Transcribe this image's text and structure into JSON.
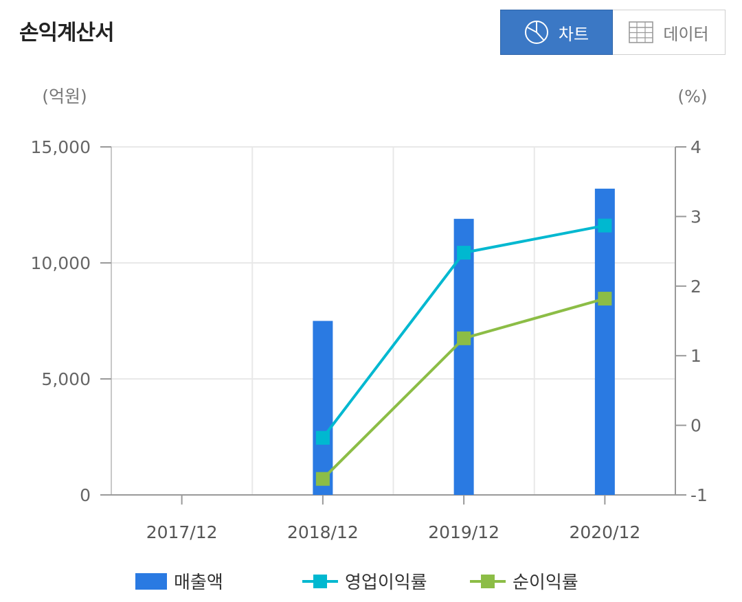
{
  "header": {
    "title": "손익계산서",
    "chart_button_label": "차트",
    "data_button_label": "데이터",
    "chart_icon": "pie-chart-icon",
    "data_icon": "table-grid-icon"
  },
  "colors": {
    "bar": "#2a7ae2",
    "operating": "#00b8d0",
    "net": "#8cbd46",
    "accent": "#3b78c5"
  },
  "chart_data": {
    "type": "bar",
    "categories": [
      "2017/12",
      "2018/12",
      "2019/12",
      "2020/12"
    ],
    "left_axis": {
      "label": "(억원)",
      "ylim": [
        0,
        15000
      ],
      "ticks": [
        0,
        5000,
        10000,
        15000
      ],
      "tick_labels": [
        "0",
        "5,000",
        "10,000",
        "15,000"
      ]
    },
    "right_axis": {
      "label": "(%)",
      "ylim": [
        -1,
        4
      ],
      "ticks": [
        -1,
        0,
        1,
        2,
        3,
        4
      ],
      "tick_labels": [
        "-1",
        "0",
        "1",
        "2",
        "3",
        "4"
      ]
    },
    "grid": true,
    "legend_position": "bottom",
    "series": [
      {
        "name": "매출액",
        "type": "bar",
        "axis": "left",
        "values": [
          0,
          7500,
          11900,
          13200
        ]
      },
      {
        "name": "영업이익률",
        "type": "line",
        "axis": "right",
        "values": [
          null,
          -0.18,
          2.48,
          2.87
        ]
      },
      {
        "name": "순이익률",
        "type": "line",
        "axis": "right",
        "values": [
          null,
          -0.77,
          1.25,
          1.82
        ]
      }
    ]
  }
}
